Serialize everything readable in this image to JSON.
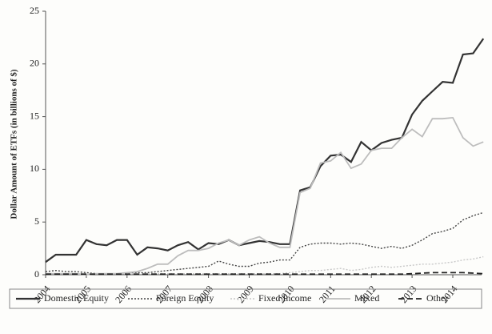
{
  "chart_data": {
    "type": "line",
    "ylabel": "Dollar Amount of ETFs (in billions of $)",
    "categories": [
      "2004",
      null,
      null,
      null,
      "2005",
      null,
      null,
      null,
      "2006",
      null,
      null,
      null,
      "2007",
      null,
      null,
      null,
      "2008",
      null,
      null,
      null,
      "2009",
      null,
      null,
      null,
      "2010",
      null,
      null,
      null,
      "2011",
      null,
      null,
      null,
      "2012",
      null,
      null,
      null,
      "2013",
      null,
      null,
      null,
      "2014",
      null,
      null,
      null
    ],
    "ylim": [
      0,
      25
    ],
    "yticks": [
      0,
      5,
      10,
      15,
      20,
      25
    ],
    "legend": "bottom",
    "series": [
      {
        "name": "Domestic Equity",
        "color": "#333333",
        "style": "solid",
        "width": 2.2,
        "values": [
          1.2,
          1.9,
          1.9,
          1.9,
          3.3,
          2.9,
          2.8,
          3.3,
          3.3,
          1.9,
          2.6,
          2.5,
          2.3,
          2.8,
          3.1,
          2.4,
          3.0,
          2.9,
          3.3,
          2.8,
          3.0,
          3.2,
          3.1,
          2.9,
          2.9,
          8.0,
          8.3,
          10.3,
          11.3,
          11.4,
          10.7,
          12.6,
          11.8,
          12.5,
          12.8,
          13.0,
          15.2,
          16.5,
          17.4,
          18.3,
          18.2,
          20.9,
          21.0,
          22.4
        ]
      },
      {
        "name": "Foreign Equity",
        "color": "#444444",
        "style": "dotted",
        "width": 1.4,
        "values": [
          0.3,
          0.4,
          0.3,
          0.3,
          0.2,
          0.1,
          0.1,
          0.1,
          0.1,
          0.2,
          0.2,
          0.3,
          0.4,
          0.5,
          0.6,
          0.7,
          0.8,
          1.3,
          1.0,
          0.8,
          0.8,
          1.1,
          1.2,
          1.4,
          1.4,
          2.6,
          2.9,
          3.0,
          3.0,
          2.9,
          3.0,
          2.9,
          2.7,
          2.5,
          2.7,
          2.5,
          2.8,
          3.3,
          3.9,
          4.1,
          4.4,
          5.2,
          5.6,
          5.9
        ]
      },
      {
        "name": "Fixed Income",
        "color": "#c8c8c8",
        "style": "dotted",
        "width": 1.4,
        "values": [
          0.1,
          0.1,
          0.1,
          0.1,
          0.1,
          0.1,
          0.1,
          0.1,
          0.1,
          0.1,
          0.1,
          0.1,
          0.1,
          0.1,
          0.1,
          0.1,
          0.1,
          0.1,
          0.1,
          0.1,
          0.1,
          0.1,
          0.1,
          0.1,
          0.2,
          0.3,
          0.4,
          0.4,
          0.5,
          0.6,
          0.4,
          0.5,
          0.7,
          0.8,
          0.7,
          0.8,
          0.9,
          1.0,
          1.0,
          1.1,
          1.2,
          1.4,
          1.5,
          1.7
        ]
      },
      {
        "name": "Mixed",
        "color": "#bdbdbd",
        "style": "solid",
        "width": 1.8,
        "values": [
          0.1,
          0.1,
          0.1,
          0.1,
          0.0,
          0.1,
          0.1,
          0.1,
          0.2,
          0.3,
          0.6,
          1.0,
          1.0,
          1.8,
          2.3,
          2.3,
          2.5,
          3.0,
          3.3,
          2.8,
          3.3,
          3.6,
          3.0,
          2.6,
          2.6,
          7.8,
          8.2,
          10.6,
          10.8,
          11.6,
          10.1,
          10.5,
          11.8,
          12.0,
          12.0,
          13.0,
          13.8,
          13.1,
          14.8,
          14.8,
          14.9,
          13.0,
          12.2,
          12.6
        ]
      },
      {
        "name": "Other",
        "color": "#222222",
        "style": "dashed",
        "width": 1.8,
        "values": [
          0.05,
          0.05,
          0.05,
          0.05,
          0.05,
          0.05,
          0.05,
          0.05,
          0.05,
          0.05,
          0.05,
          0.05,
          0.05,
          0.05,
          0.05,
          0.05,
          0.05,
          0.05,
          0.05,
          0.05,
          0.05,
          0.05,
          0.05,
          0.05,
          0.05,
          0.05,
          0.05,
          0.05,
          0.05,
          0.05,
          0.05,
          0.05,
          0.05,
          0.05,
          0.05,
          0.05,
          0.1,
          0.15,
          0.2,
          0.2,
          0.2,
          0.2,
          0.15,
          0.1
        ]
      }
    ]
  }
}
